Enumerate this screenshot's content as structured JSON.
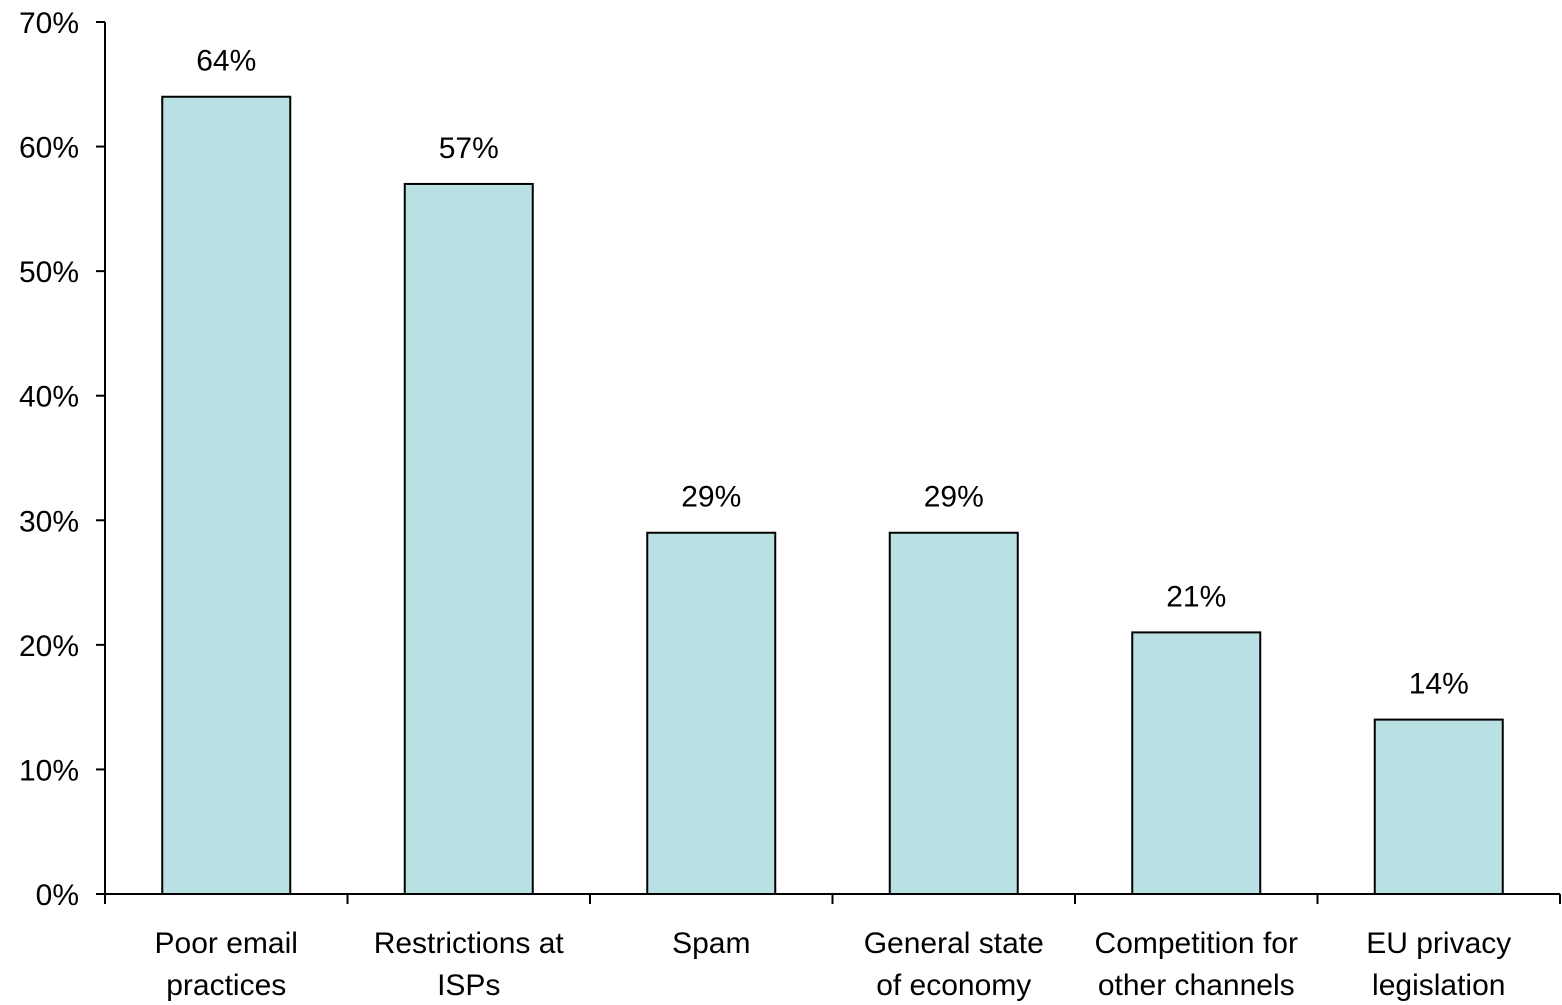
{
  "chart_data": {
    "type": "bar",
    "categories": [
      [
        "Poor email",
        "practices"
      ],
      [
        "Restrictions at",
        "ISPs"
      ],
      [
        "Spam"
      ],
      [
        "General state",
        "of economy"
      ],
      [
        "Competition for",
        "other channels"
      ],
      [
        "EU privacy",
        "legislation"
      ]
    ],
    "values": [
      64,
      57,
      29,
      29,
      21,
      14
    ],
    "data_labels": [
      "64%",
      "57%",
      "29%",
      "29%",
      "21%",
      "14%"
    ],
    "title": "",
    "xlabel": "",
    "ylabel": "",
    "ylim": [
      0,
      70
    ],
    "yticks": [
      0,
      10,
      20,
      30,
      40,
      50,
      60,
      70
    ],
    "ytick_labels": [
      "0%",
      "10%",
      "20%",
      "30%",
      "40%",
      "50%",
      "60%",
      "70%"
    ],
    "grid": false,
    "legend": "none",
    "colors": {
      "bar_fill": "#b9e0e2",
      "bar_stroke": "#000000",
      "axis": "#000000"
    }
  }
}
